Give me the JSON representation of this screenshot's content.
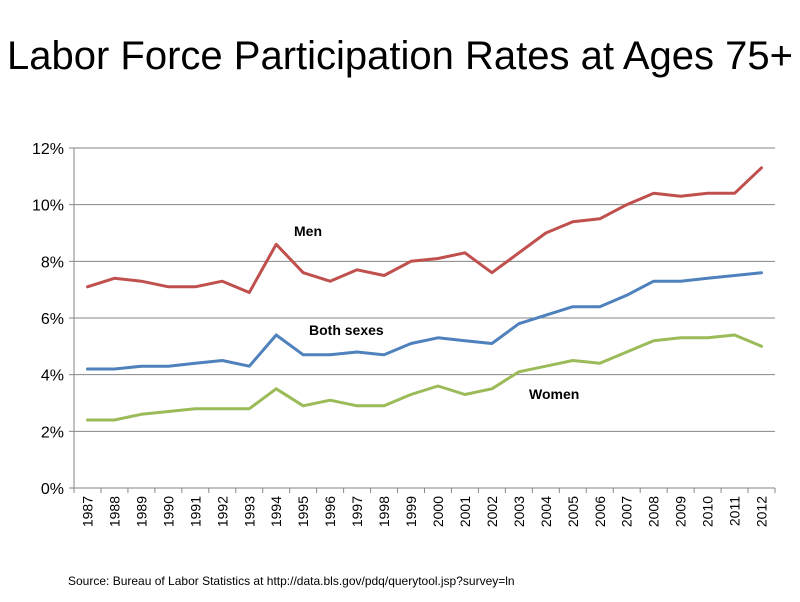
{
  "chart_data": {
    "type": "line",
    "title": "Labor Force Participation Rates at Ages 75+",
    "xlabel": "",
    "ylabel": "",
    "categories": [
      "1987",
      "1988",
      "1989",
      "1990",
      "1991",
      "1992",
      "1993",
      "1994",
      "1995",
      "1996",
      "1997",
      "1998",
      "1999",
      "2000",
      "2001",
      "2002",
      "2003",
      "2004",
      "2005",
      "2006",
      "2007",
      "2008",
      "2009",
      "2010",
      "2011",
      "2012"
    ],
    "y_ticks": [
      "0%",
      "2%",
      "4%",
      "6%",
      "8%",
      "10%",
      "12%"
    ],
    "ylim": [
      0,
      12
    ],
    "grid": true,
    "legend": "inline labels",
    "series": [
      {
        "name": "Men",
        "color": "#c0504d",
        "values": [
          7.1,
          7.4,
          7.3,
          7.1,
          7.1,
          7.3,
          6.9,
          8.6,
          7.6,
          7.3,
          7.7,
          7.5,
          8.0,
          8.1,
          8.3,
          7.6,
          8.3,
          9.0,
          9.4,
          9.5,
          10.0,
          10.4,
          10.3,
          10.4,
          10.4,
          11.3
        ]
      },
      {
        "name": "Both sexes",
        "color": "#4f81bd",
        "values": [
          4.2,
          4.2,
          4.3,
          4.3,
          4.4,
          4.5,
          4.3,
          5.4,
          4.7,
          4.7,
          4.8,
          4.7,
          5.1,
          5.3,
          5.2,
          5.1,
          5.8,
          6.1,
          6.4,
          6.4,
          6.8,
          7.3,
          7.3,
          7.4,
          7.5,
          7.6
        ]
      },
      {
        "name": "Women",
        "color": "#9bbb59",
        "values": [
          2.4,
          2.4,
          2.6,
          2.7,
          2.8,
          2.8,
          2.8,
          3.5,
          2.9,
          3.1,
          2.9,
          2.9,
          3.3,
          3.6,
          3.3,
          3.5,
          4.1,
          4.3,
          4.5,
          4.4,
          4.8,
          5.2,
          5.3,
          5.3,
          5.4,
          5.0
        ]
      }
    ],
    "annotations": [
      {
        "text": "Men",
        "series": "Men"
      },
      {
        "text": "Both sexes",
        "series": "Both sexes"
      },
      {
        "text": "Women",
        "series": "Women"
      }
    ],
    "source": "Source:  Bureau of Labor Statistics at http://data.bls.gov/pdq/querytool.jsp?survey=ln"
  }
}
